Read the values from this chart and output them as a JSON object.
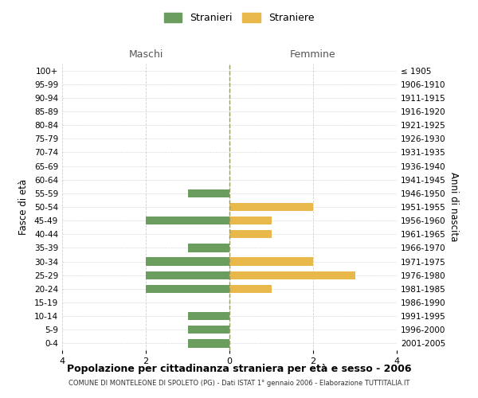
{
  "age_groups": [
    "100+",
    "95-99",
    "90-94",
    "85-89",
    "80-84",
    "75-79",
    "70-74",
    "65-69",
    "60-64",
    "55-59",
    "50-54",
    "45-49",
    "40-44",
    "35-39",
    "30-34",
    "25-29",
    "20-24",
    "15-19",
    "10-14",
    "5-9",
    "0-4"
  ],
  "birth_years": [
    "≤ 1905",
    "1906-1910",
    "1911-1915",
    "1916-1920",
    "1921-1925",
    "1926-1930",
    "1931-1935",
    "1936-1940",
    "1941-1945",
    "1946-1950",
    "1951-1955",
    "1956-1960",
    "1961-1965",
    "1966-1970",
    "1971-1975",
    "1976-1980",
    "1981-1985",
    "1986-1990",
    "1991-1995",
    "1996-2000",
    "2001-2005"
  ],
  "males": [
    0,
    0,
    0,
    0,
    0,
    0,
    0,
    0,
    0,
    1,
    0,
    2,
    0,
    1,
    2,
    2,
    2,
    0,
    1,
    1,
    1
  ],
  "females": [
    0,
    0,
    0,
    0,
    0,
    0,
    0,
    0,
    0,
    0,
    2,
    1,
    1,
    0,
    2,
    3,
    1,
    0,
    0,
    0,
    0
  ],
  "male_color": "#6b9e5e",
  "female_color": "#e8b84b",
  "title": "Popolazione per cittadinanza straniera per età e sesso - 2006",
  "subtitle": "COMUNE DI MONTELEONE DI SPOLETO (PG) - Dati ISTAT 1° gennaio 2006 - Elaborazione TUTTITALIA.IT",
  "ylabel_left": "Fasce di età",
  "ylabel_right": "Anni di nascita",
  "xlim": 4,
  "legend_stranieri": "Stranieri",
  "legend_straniere": "Straniere",
  "maschi_label": "Maschi",
  "femmine_label": "Femmine",
  "bg_color": "#ffffff",
  "grid_color": "#d0d0d0",
  "center_line_color": "#999966"
}
